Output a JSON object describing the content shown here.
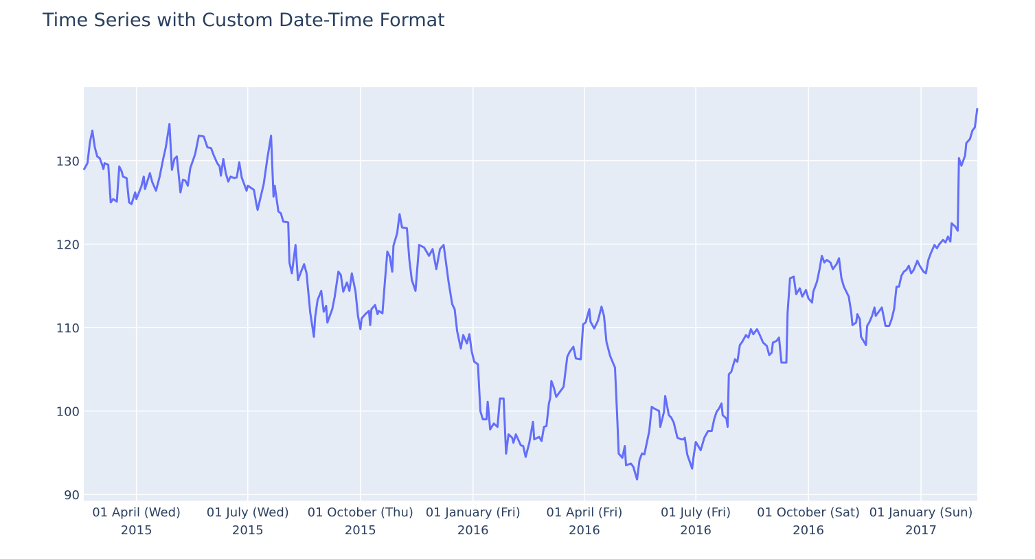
{
  "chart_data": {
    "type": "line",
    "title": "Time Series with Custom Date-Time Format",
    "color": "#636efa",
    "grid": true,
    "xlim": [
      "2015-02-17",
      "2017-02-16"
    ],
    "ylim": [
      89.26,
      138.8
    ],
    "yticks": [
      90,
      100,
      110,
      120,
      130
    ],
    "xticks": [
      {
        "value": "2015-04-01",
        "label": "01 April (Wed)\n2015"
      },
      {
        "value": "2015-07-01",
        "label": "01 July (Wed)\n2015"
      },
      {
        "value": "2015-10-01",
        "label": "01 October (Thu)\n2015"
      },
      {
        "value": "2016-01-01",
        "label": "01 January (Fri)\n2016"
      },
      {
        "value": "2016-04-01",
        "label": "01 April (Fri)\n2016"
      },
      {
        "value": "2016-07-01",
        "label": "01 July (Fri)\n2016"
      },
      {
        "value": "2016-10-01",
        "label": "01 October (Sat)\n2016"
      },
      {
        "value": "2017-01-01",
        "label": "01 January (Sun)\n2017"
      }
    ],
    "x": [
      "2015-02-17",
      "2015-02-20",
      "2015-02-22",
      "2015-02-24",
      "2015-02-26",
      "2015-02-28",
      "2015-03-02",
      "2015-03-04",
      "2015-03-05",
      "2015-03-06",
      "2015-03-09",
      "2015-03-11",
      "2015-03-13",
      "2015-03-16",
      "2015-03-18",
      "2015-03-20",
      "2015-03-21",
      "2015-03-24",
      "2015-03-26",
      "2015-03-28",
      "2015-03-31",
      "2015-04-01",
      "2015-04-05",
      "2015-04-07",
      "2015-04-08",
      "2015-04-12",
      "2015-04-14",
      "2015-04-17",
      "2015-04-20",
      "2015-04-23",
      "2015-04-25",
      "2015-04-28",
      "2015-04-30",
      "2015-05-02",
      "2015-05-04",
      "2015-05-07",
      "2015-05-09",
      "2015-05-11",
      "2015-05-13",
      "2015-05-15",
      "2015-05-19",
      "2015-05-22",
      "2015-05-26",
      "2015-05-29",
      "2015-06-01",
      "2015-06-03",
      "2015-06-06",
      "2015-06-08",
      "2015-06-09",
      "2015-06-11",
      "2015-06-13",
      "2015-06-15",
      "2015-06-17",
      "2015-06-20",
      "2015-06-22",
      "2015-06-24",
      "2015-06-26",
      "2015-06-28",
      "2015-06-30",
      "2015-07-01",
      "2015-07-06",
      "2015-07-08",
      "2015-07-09",
      "2015-07-14",
      "2015-07-17",
      "2015-07-20",
      "2015-07-22",
      "2015-07-23",
      "2015-07-26",
      "2015-07-28",
      "2015-07-30",
      "2015-08-03",
      "2015-08-04",
      "2015-08-06",
      "2015-08-09",
      "2015-08-11",
      "2015-08-13",
      "2015-08-16",
      "2015-08-18",
      "2015-08-21",
      "2015-08-24",
      "2015-08-25",
      "2015-08-27",
      "2015-08-30",
      "2015-09-01",
      "2015-09-03",
      "2015-09-04",
      "2015-09-08",
      "2015-09-10",
      "2015-09-13",
      "2015-09-15",
      "2015-09-17",
      "2015-09-20",
      "2015-09-22",
      "2015-09-24",
      "2015-09-27",
      "2015-09-29",
      "2015-10-01",
      "2015-10-02",
      "2015-10-05",
      "2015-10-08",
      "2015-10-09",
      "2015-10-10",
      "2015-10-13",
      "2015-10-15",
      "2015-10-16",
      "2015-10-19",
      "2015-10-21",
      "2015-10-23",
      "2015-10-25",
      "2015-10-27",
      "2015-10-28",
      "2015-10-31",
      "2015-11-02",
      "2015-11-04",
      "2015-11-08",
      "2015-11-10",
      "2015-11-12",
      "2015-11-15",
      "2015-11-18",
      "2015-11-22",
      "2015-11-26",
      "2015-11-29",
      "2015-12-02",
      "2015-12-05",
      "2015-12-08",
      "2015-12-12",
      "2015-12-15",
      "2015-12-17",
      "2015-12-19",
      "2015-12-22",
      "2015-12-24",
      "2015-12-27",
      "2015-12-29",
      "2015-12-31",
      "2016-01-02",
      "2016-01-05",
      "2016-01-07",
      "2016-01-09",
      "2016-01-12",
      "2016-01-13",
      "2016-01-15",
      "2016-01-18",
      "2016-01-21",
      "2016-01-23",
      "2016-01-26",
      "2016-01-28",
      "2016-01-30",
      "2016-02-02",
      "2016-02-03",
      "2016-02-05",
      "2016-02-09",
      "2016-02-11",
      "2016-02-13",
      "2016-02-16",
      "2016-02-19",
      "2016-02-20",
      "2016-02-24",
      "2016-02-26",
      "2016-02-28",
      "2016-03-01",
      "2016-03-03",
      "2016-03-04",
      "2016-03-05",
      "2016-03-07",
      "2016-03-09",
      "2016-03-12",
      "2016-03-15",
      "2016-03-18",
      "2016-03-20",
      "2016-03-23",
      "2016-03-25",
      "2016-03-29",
      "2016-03-31",
      "2016-04-02",
      "2016-04-05",
      "2016-04-06",
      "2016-04-09",
      "2016-04-12",
      "2016-04-15",
      "2016-04-17",
      "2016-04-19",
      "2016-04-22",
      "2016-04-26",
      "2016-04-28",
      "2016-04-29",
      "2016-05-02",
      "2016-05-04",
      "2016-05-05",
      "2016-05-09",
      "2016-05-11",
      "2016-05-14",
      "2016-05-16",
      "2016-05-18",
      "2016-05-20",
      "2016-05-22",
      "2016-05-24",
      "2016-05-26",
      "2016-05-28",
      "2016-06-01",
      "2016-06-02",
      "2016-06-05",
      "2016-06-06",
      "2016-06-09",
      "2016-06-11",
      "2016-06-13",
      "2016-06-16",
      "2016-06-19",
      "2016-06-21",
      "2016-06-22",
      "2016-06-24",
      "2016-06-28",
      "2016-06-29",
      "2016-07-01",
      "2016-07-05",
      "2016-07-08",
      "2016-07-11",
      "2016-07-14",
      "2016-07-16",
      "2016-07-18",
      "2016-07-20",
      "2016-07-22",
      "2016-07-23",
      "2016-07-26",
      "2016-07-27",
      "2016-07-28",
      "2016-07-30",
      "2016-08-02",
      "2016-08-04",
      "2016-08-06",
      "2016-08-08",
      "2016-08-11",
      "2016-08-13",
      "2016-08-15",
      "2016-08-17",
      "2016-08-20",
      "2016-08-22",
      "2016-08-25",
      "2016-08-28",
      "2016-08-30",
      "2016-09-01",
      "2016-09-02",
      "2016-09-05",
      "2016-09-07",
      "2016-09-09",
      "2016-09-13",
      "2016-09-14",
      "2016-09-16",
      "2016-09-19",
      "2016-09-21",
      "2016-09-24",
      "2016-09-26",
      "2016-09-29",
      "2016-10-01",
      "2016-10-04",
      "2016-10-05",
      "2016-10-08",
      "2016-10-10",
      "2016-10-12",
      "2016-10-14",
      "2016-10-16",
      "2016-10-19",
      "2016-10-21",
      "2016-10-24",
      "2016-10-26",
      "2016-10-28",
      "2016-10-30",
      "2016-11-03",
      "2016-11-05",
      "2016-11-06",
      "2016-11-09",
      "2016-11-10",
      "2016-11-12",
      "2016-11-13",
      "2016-11-15",
      "2016-11-17",
      "2016-11-18",
      "2016-11-20",
      "2016-11-22",
      "2016-11-24",
      "2016-11-25",
      "2016-11-28",
      "2016-11-30",
      "2016-12-03",
      "2016-12-06",
      "2016-12-08",
      "2016-12-10",
      "2016-12-12",
      "2016-12-14",
      "2016-12-16",
      "2016-12-18",
      "2016-12-20",
      "2016-12-22",
      "2016-12-24",
      "2016-12-26",
      "2016-12-29",
      "2016-12-31",
      "2017-01-03",
      "2017-01-05",
      "2017-01-07",
      "2017-01-09",
      "2017-01-12",
      "2017-01-14",
      "2017-01-16",
      "2017-01-19",
      "2017-01-21",
      "2017-01-23",
      "2017-01-25",
      "2017-01-26",
      "2017-01-29",
      "2017-01-31",
      "2017-02-01",
      "2017-02-03",
      "2017-02-06",
      "2017-02-07",
      "2017-02-10",
      "2017-02-12",
      "2017-02-14",
      "2017-02-16"
    ],
    "values": [
      128.9,
      129.7,
      132.2,
      133.6,
      131.6,
      130.5,
      130.3,
      129.5,
      129.0,
      129.7,
      129.5,
      125.0,
      125.4,
      125.1,
      129.3,
      128.7,
      128.1,
      127.9,
      125.0,
      124.8,
      126.2,
      125.4,
      126.9,
      128.1,
      126.6,
      128.5,
      127.4,
      126.4,
      128.1,
      130.3,
      131.6,
      134.4,
      128.9,
      130.2,
      130.5,
      126.2,
      127.7,
      127.6,
      127.0,
      129.1,
      130.8,
      133.0,
      132.9,
      131.6,
      131.5,
      130.7,
      129.7,
      129.3,
      128.2,
      130.2,
      128.5,
      127.5,
      128.1,
      127.9,
      128.0,
      129.8,
      128.0,
      127.2,
      126.4,
      127.0,
      126.5,
      124.8,
      124.1,
      127.2,
      130.3,
      133.0,
      125.7,
      127.0,
      123.9,
      123.7,
      122.7,
      122.6,
      117.8,
      116.5,
      119.9,
      115.7,
      116.5,
      117.6,
      116.5,
      111.8,
      108.9,
      111.2,
      113.3,
      114.4,
      111.9,
      112.6,
      110.6,
      112.2,
      113.7,
      116.7,
      116.3,
      114.3,
      115.4,
      114.4,
      116.5,
      114.3,
      111.4,
      109.8,
      111.1,
      111.6,
      112.0,
      110.3,
      112.2,
      112.7,
      111.6,
      112.0,
      111.7,
      115.5,
      119.1,
      118.5,
      116.7,
      119.8,
      121.3,
      123.6,
      122.0,
      121.9,
      118.1,
      115.7,
      114.4,
      119.9,
      119.6,
      118.6,
      119.4,
      117.0,
      119.4,
      119.9,
      115.5,
      112.8,
      112.2,
      109.6,
      107.5,
      109.1,
      108.1,
      109.2,
      107.1,
      105.9,
      105.6,
      100.0,
      99.0,
      99.0,
      101.1,
      97.8,
      98.5,
      98.1,
      101.5,
      101.5,
      94.9,
      97.2,
      96.8,
      96.2,
      97.2,
      95.9,
      95.8,
      94.5,
      96.2,
      98.7,
      96.6,
      96.9,
      96.4,
      98.1,
      98.2,
      100.9,
      101.5,
      103.6,
      102.8,
      101.7,
      102.3,
      102.9,
      106.5,
      107.1,
      107.7,
      106.3,
      106.2,
      110.4,
      110.6,
      112.2,
      110.7,
      109.9,
      110.8,
      112.5,
      111.4,
      108.3,
      106.6,
      105.2,
      98.6,
      94.9,
      94.4,
      95.8,
      93.5,
      93.7,
      93.3,
      91.8,
      94.1,
      94.9,
      94.8,
      96.2,
      97.6,
      100.5,
      100.3,
      100.0,
      98.1,
      99.9,
      101.8,
      99.5,
      99.2,
      98.6,
      96.8,
      96.6,
      96.6,
      96.8,
      94.8,
      93.1,
      94.3,
      96.3,
      95.3,
      96.8,
      97.6,
      97.6,
      99.0,
      99.9,
      100.3,
      100.9,
      99.5,
      99.1,
      98.1,
      104.4,
      104.7,
      106.2,
      105.9,
      107.9,
      108.3,
      109.1,
      108.8,
      109.8,
      109.2,
      109.8,
      109.2,
      108.2,
      107.8,
      106.7,
      107.0,
      108.2,
      108.4,
      108.8,
      105.8,
      105.8,
      111.8,
      115.9,
      116.1,
      114.0,
      114.7,
      113.7,
      114.5,
      113.5,
      113.0,
      114.3,
      115.5,
      116.9,
      118.6,
      117.8,
      118.1,
      117.8,
      117.0,
      117.6,
      118.3,
      115.9,
      114.9,
      113.7,
      111.8,
      110.3,
      110.6,
      111.6,
      111.0,
      108.9,
      108.4,
      107.9,
      110.2,
      110.7,
      111.4,
      112.4,
      111.4,
      112.0,
      112.4,
      110.2,
      110.2,
      111.0,
      112.2,
      114.9,
      114.9,
      116.2,
      116.7,
      116.9,
      117.4,
      116.5,
      116.9,
      118.0,
      117.4,
      116.7,
      116.5,
      118.1,
      118.9,
      119.9,
      119.5,
      120.0,
      120.5,
      120.2,
      120.9,
      120.3,
      122.5,
      122.1,
      121.6,
      130.3,
      129.4,
      130.6,
      132.1,
      132.6,
      133.6,
      134.0,
      136.3
    ]
  }
}
